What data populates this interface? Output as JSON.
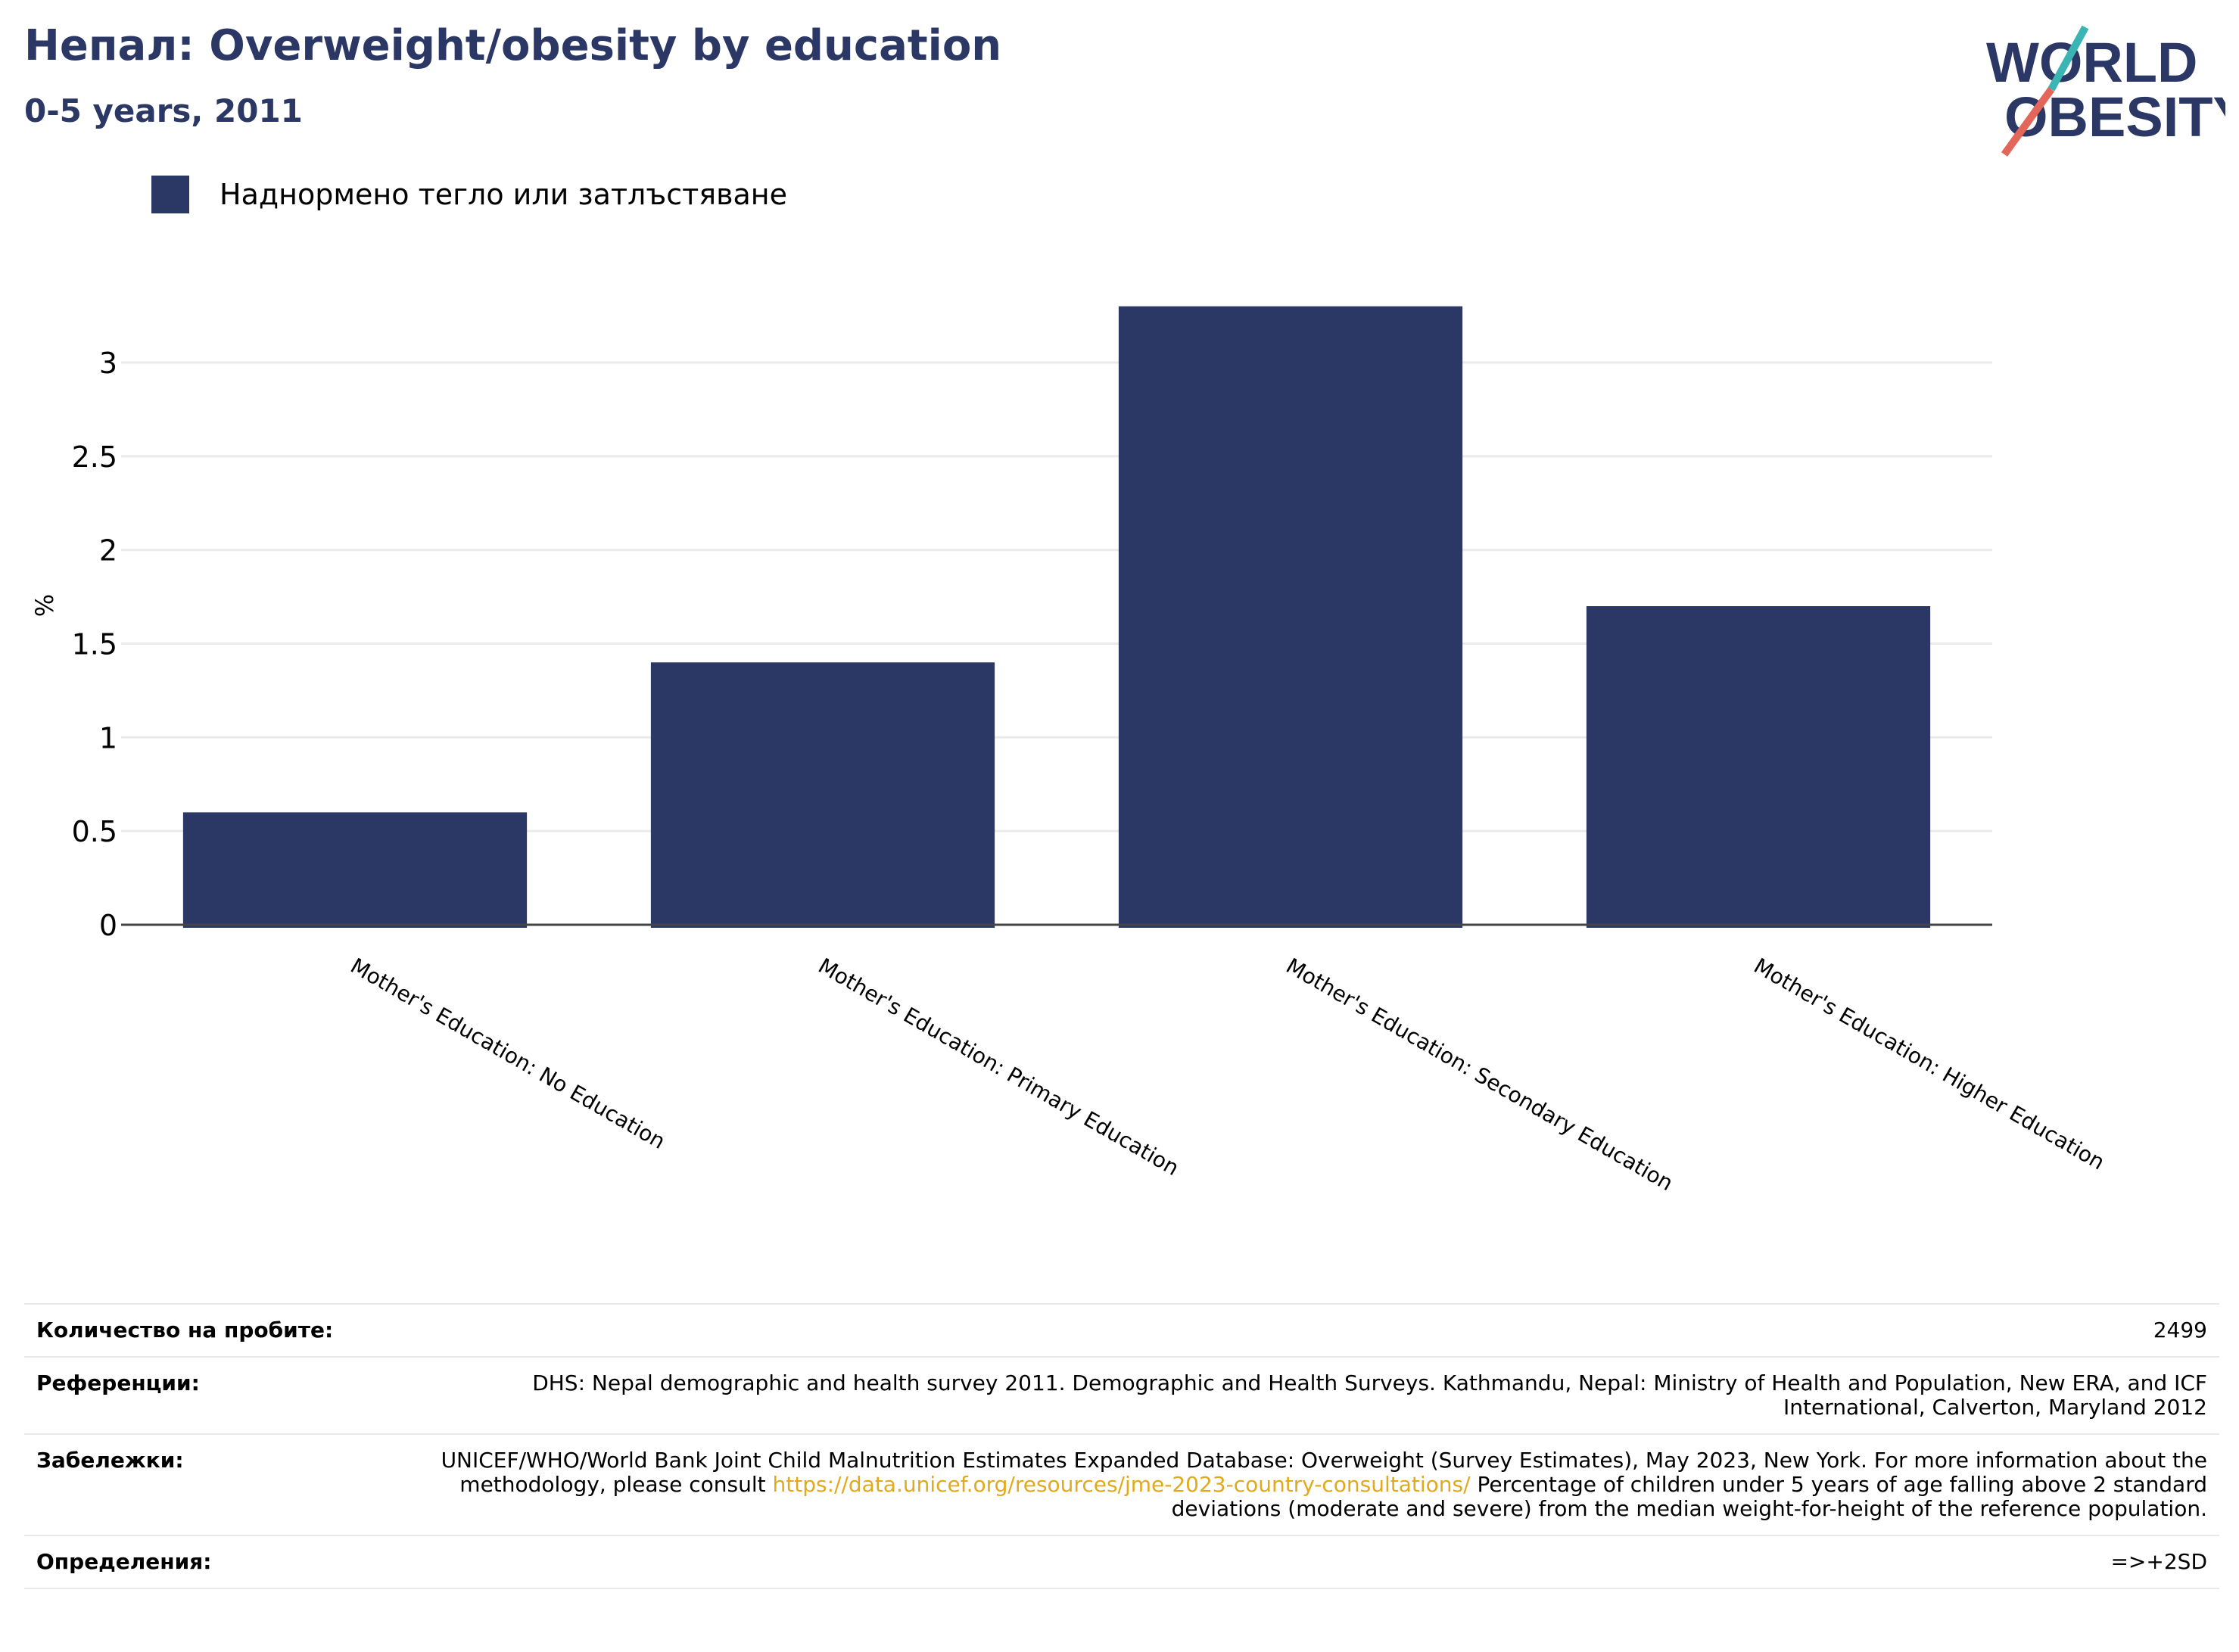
{
  "header": {
    "title": "Непал: Overweight/obesity by education",
    "subtitle": "0-5 years, 2011"
  },
  "logo": {
    "line1": "WORLD",
    "line2": "OBESITY"
  },
  "colors": {
    "bar": "#2b3764",
    "accent_teal": "#3bb4b4",
    "accent_coral": "#e2675a"
  },
  "chart_data": {
    "type": "bar",
    "categories": [
      "Mother's Education: No Education",
      "Mother's Education: Primary Education",
      "Mother's Education: Secondary Education",
      "Mother's Education: Higher Education"
    ],
    "series": [
      {
        "name": "Наднормено тегло или затлъстяване",
        "values": [
          0.6,
          1.4,
          3.3,
          1.7
        ]
      }
    ],
    "ylabel": "%",
    "ylim": [
      0,
      3.4
    ],
    "yticks": [
      "0",
      "0.5",
      "1",
      "1.5",
      "2",
      "2.5",
      "3"
    ],
    "grid": true,
    "legend_position": "top-left"
  },
  "meta": {
    "sample_label": "Количество на пробите:",
    "sample_value": "2499",
    "references_label": "Референции:",
    "references_value": "DHS: Nepal demographic and health survey 2011. Demographic and Health Surveys. Kathmandu, Nepal: Ministry of Health and Population, New ERA, and ICF International, Calverton, Maryland 2012",
    "notes_label": "Забележки:",
    "notes_before": "UNICEF/WHO/World Bank Joint Child Malnutrition Estimates Expanded Database: Overweight (Survey Estimates), May 2023, New York. For more information about the methodology, please consult ",
    "notes_link": "https://data.unicef.org/resources/jme-2023-country-consultations/",
    "notes_after": " Percentage of children under 5 years of age falling above 2 standard deviations (moderate and severe) from the median weight-for-height of the reference population.",
    "definitions_label": "Определения:",
    "definitions_value": "=>+2SD"
  }
}
